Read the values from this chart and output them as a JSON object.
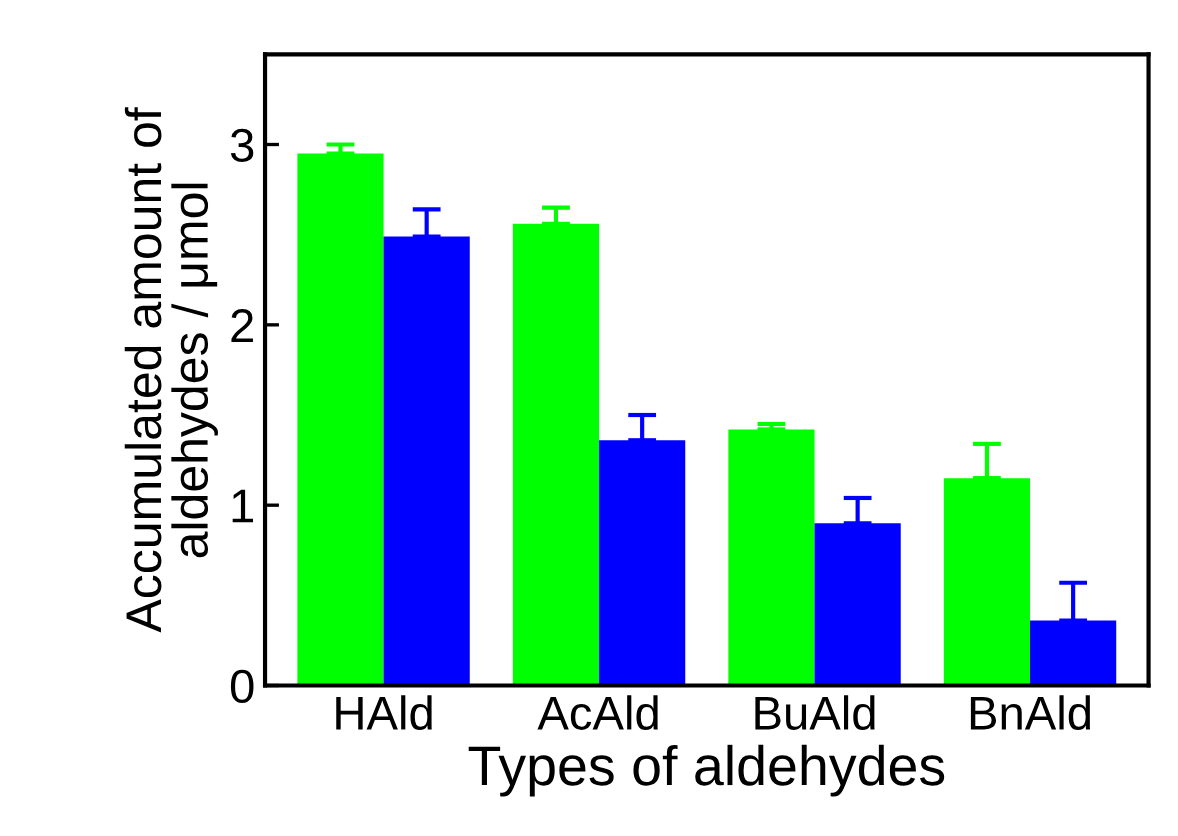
{
  "chart_data": {
    "type": "bar",
    "xlabel": "Types of aldehydes",
    "ylabel": "Accumulated amount of\naldehydes / μmol",
    "categories": [
      "HAld",
      "AcAld",
      "BuAld",
      "BnAld"
    ],
    "series": [
      {
        "color": "#00ff00",
        "values": [
          2.95,
          2.56,
          1.42,
          1.15
        ],
        "errors": [
          [
            2.95,
            3.0
          ],
          [
            2.56,
            2.65
          ],
          [
            1.42,
            1.45
          ],
          [
            1.15,
            1.34
          ]
        ]
      },
      {
        "color": "#0000ff",
        "values": [
          2.49,
          1.36,
          0.9,
          0.36
        ],
        "errors": [
          [
            2.49,
            2.64
          ],
          [
            1.36,
            1.5
          ],
          [
            0.9,
            1.04
          ],
          [
            0.36,
            0.57
          ]
        ]
      }
    ],
    "ylim": [
      0,
      3.5
    ],
    "yticks": [
      0,
      1,
      2,
      3
    ],
    "grid": false,
    "legend": false
  }
}
